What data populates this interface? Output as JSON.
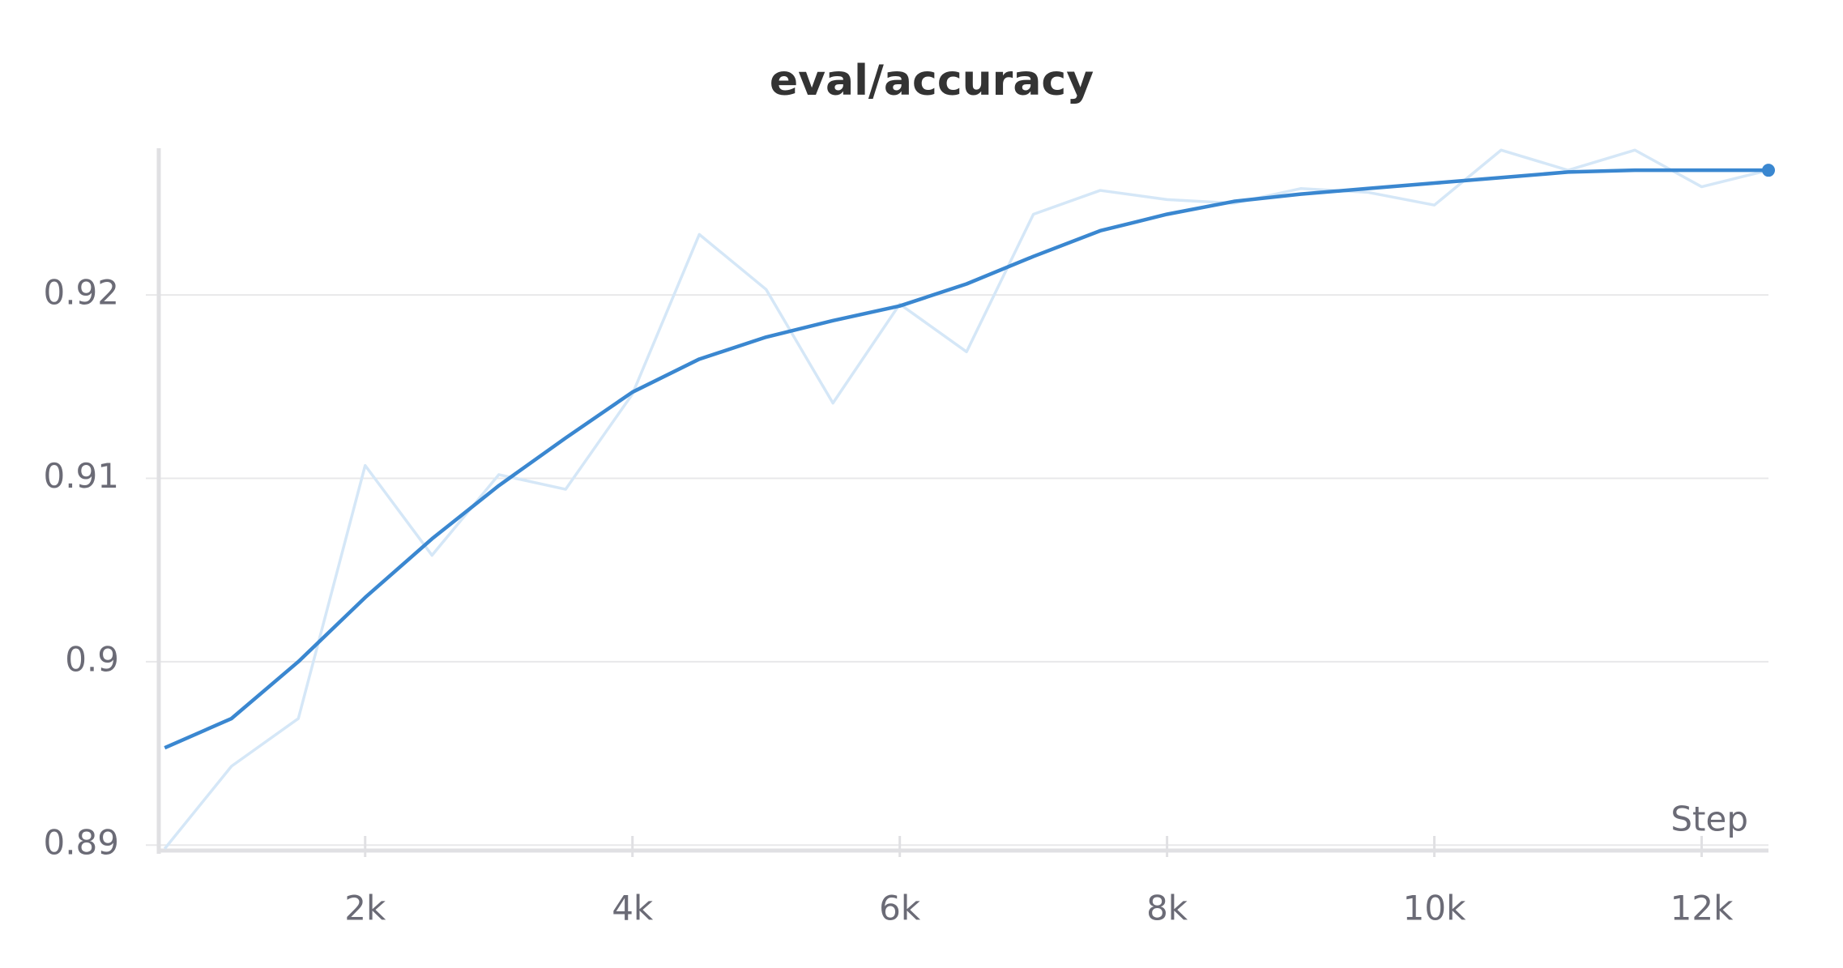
{
  "chart_data": {
    "type": "line",
    "title": "eval/accuracy",
    "x_label": "Step",
    "x": [
      500,
      1000,
      1500,
      2000,
      2500,
      3000,
      3500,
      4000,
      4500,
      5000,
      5500,
      6000,
      6500,
      7000,
      7500,
      8000,
      8500,
      9000,
      9500,
      10000,
      10500,
      11000,
      11500,
      12000,
      12500
    ],
    "series": [
      {
        "color": "#d5e7f7",
        "values": [
          0.8898,
          0.8943,
          0.8969,
          0.9107,
          0.9058,
          0.9102,
          0.9094,
          0.9146,
          0.9233,
          0.9203,
          0.9141,
          0.9195,
          0.9169,
          0.9244,
          0.9257,
          0.9252,
          0.925,
          0.9258,
          0.9256,
          0.9249,
          0.9279,
          0.9268,
          0.9279,
          0.9259,
          0.9268
        ]
      },
      {
        "color": "#3a87d0",
        "values": [
          0.8953,
          0.8969,
          0.9,
          0.9035,
          0.9067,
          0.9096,
          0.9122,
          0.9147,
          0.9165,
          0.9177,
          0.9186,
          0.9194,
          0.9206,
          0.9221,
          0.9235,
          0.9244,
          0.9251,
          0.9255,
          0.9258,
          0.9261,
          0.9264,
          0.9267,
          0.9268,
          0.9268,
          0.9268
        ],
        "end_marker": true
      }
    ],
    "xlim": [
      480,
      12500
    ],
    "ylim": [
      0.8897,
      0.928
    ],
    "xticks": [
      {
        "value": 2000,
        "label": "2k"
      },
      {
        "value": 4000,
        "label": "4k"
      },
      {
        "value": 6000,
        "label": "6k"
      },
      {
        "value": 8000,
        "label": "8k"
      },
      {
        "value": 10000,
        "label": "10k"
      },
      {
        "value": 12000,
        "label": "12k"
      }
    ],
    "yticks": [
      0.89,
      0.9,
      0.91,
      0.92
    ],
    "grid": true
  }
}
